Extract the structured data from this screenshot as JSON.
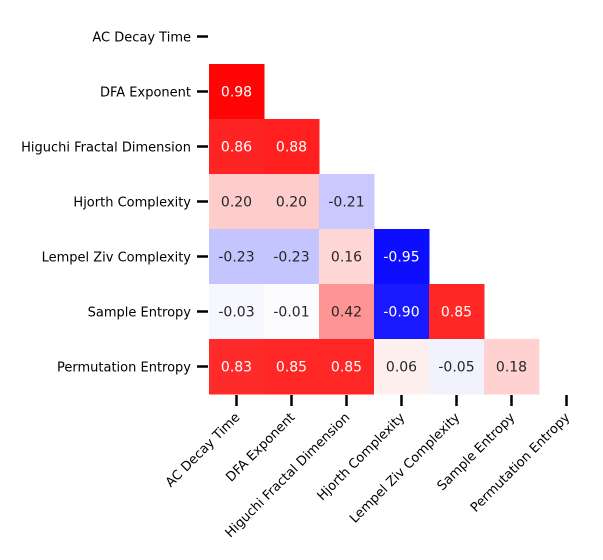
{
  "chart_data": {
    "type": "heatmap",
    "title": "",
    "xlabel": "",
    "ylabel": "",
    "mask": "upper-triangle-including-diagonal",
    "colormap": "bwr",
    "vmin": -1,
    "vmax": 1,
    "labels": [
      "AC Decay Time",
      "DFA Exponent",
      "Higuchi Fractal Dimension",
      "Hjorth Complexity",
      "Lempel Ziv Complexity",
      "Sample Entropy",
      "Permutation Entropy"
    ],
    "rows": [
      [],
      [
        0.98
      ],
      [
        0.86,
        0.88
      ],
      [
        0.2,
        0.2,
        -0.21
      ],
      [
        -0.23,
        -0.23,
        0.16,
        -0.95
      ],
      [
        -0.03,
        -0.01,
        0.42,
        -0.9,
        0.85
      ],
      [
        0.83,
        0.85,
        0.85,
        0.06,
        -0.05,
        0.18
      ]
    ],
    "colors": {
      "negative": "#0000ff",
      "zero": "#ffffff",
      "positive": "#ff0000",
      "text_dark": "#262626",
      "text_light": "#ffffff"
    }
  }
}
